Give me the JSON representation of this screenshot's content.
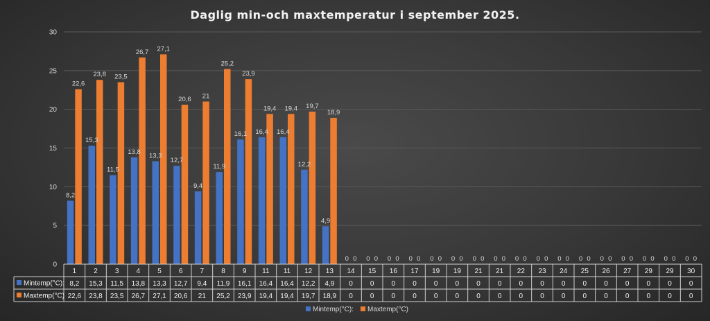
{
  "chart_data": {
    "type": "bar",
    "title": "Daglig min-och maxtemperatur i september 2025.",
    "categories": [
      "1",
      "2",
      "3",
      "4",
      "5",
      "6",
      "7",
      "8",
      "9",
      "11",
      "11",
      "12",
      "13",
      "14",
      "15",
      "16",
      "17",
      "19",
      "19",
      "21",
      "21",
      "22",
      "23",
      "24",
      "25",
      "26",
      "27",
      "29",
      "29",
      "30"
    ],
    "series": [
      {
        "name": "Mintemp(°C):",
        "color": "#4472c4",
        "values": [
          8.2,
          15.3,
          11.5,
          13.8,
          13.3,
          12.7,
          9.4,
          11.9,
          16.1,
          16.4,
          16.4,
          12.2,
          4.9,
          0,
          0,
          0,
          0,
          0,
          0,
          0,
          0,
          0,
          0,
          0,
          0,
          0,
          0,
          0,
          0,
          0
        ],
        "labels": [
          "8,2",
          "15,3",
          "11,5",
          "13,8",
          "13,3",
          "12,7",
          "9,4",
          "11,9",
          "16,1",
          "16,4",
          "16,4",
          "12,2",
          "4,9",
          "0",
          "0",
          "0",
          "0",
          "0",
          "0",
          "0",
          "0",
          "0",
          "0",
          "0",
          "0",
          "0",
          "0",
          "0",
          "0",
          "0"
        ]
      },
      {
        "name": "Maxtemp(°C)",
        "color": "#ed7d31",
        "values": [
          22.6,
          23.8,
          23.5,
          26.7,
          27.1,
          20.6,
          21,
          25.2,
          23.9,
          19.4,
          19.4,
          19.7,
          18.9,
          0,
          0,
          0,
          0,
          0,
          0,
          0,
          0,
          0,
          0,
          0,
          0,
          0,
          0,
          0,
          0,
          0
        ],
        "labels": [
          "22,6",
          "23,8",
          "23,5",
          "26,7",
          "27,1",
          "20,6",
          "21",
          "25,2",
          "23,9",
          "19,4",
          "19,4",
          "19,7",
          "18,9",
          "0",
          "0",
          "0",
          "0",
          "0",
          "0",
          "0",
          "0",
          "0",
          "0",
          "0",
          "0",
          "0",
          "0",
          "0",
          "0",
          "0"
        ]
      }
    ],
    "ylim": [
      0,
      30
    ],
    "yticks": [
      0,
      5,
      10,
      15,
      20,
      25,
      30
    ],
    "grid": true,
    "legend": "bottom-center",
    "data_table": true
  }
}
